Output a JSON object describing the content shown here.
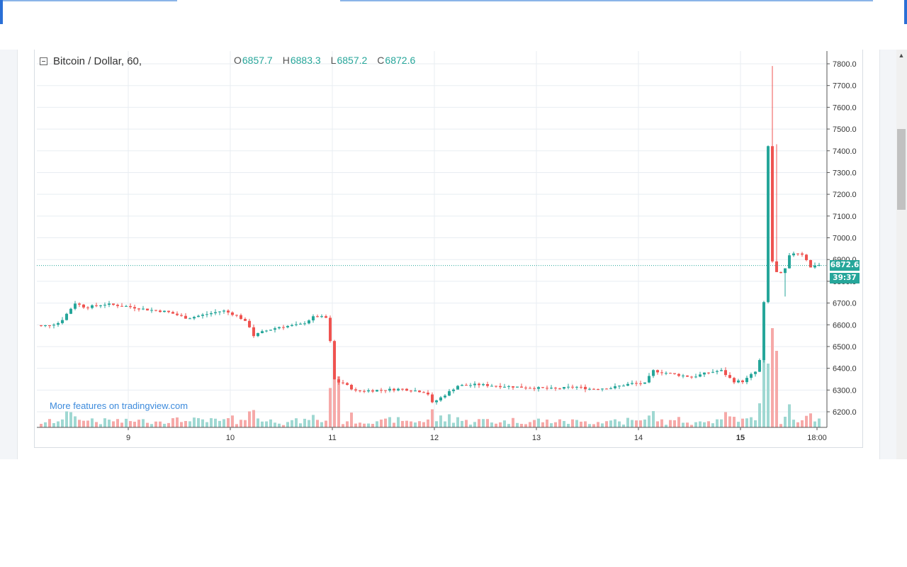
{
  "page": {
    "promo_link": "More features on tradingview.com"
  },
  "legend": {
    "symbol": "Bitcoin / Dollar, 60,",
    "o_label": "O",
    "o_value": "6857.7",
    "h_label": "H",
    "h_value": "6883.3",
    "l_label": "L",
    "l_value": "6857.2",
    "c_label": "C",
    "c_value": "6872.6"
  },
  "price_tag": {
    "price": "6872.6",
    "countdown": "39:37"
  },
  "colors": {
    "up": "#26a69a",
    "down": "#ef5350",
    "up_volume": "#9fd8d2",
    "down_volume": "#f6a9a8",
    "grid": "#e8edf2",
    "axis_text": "#333333"
  },
  "chart_data": {
    "type": "candlestick",
    "title": "",
    "xlabel": "",
    "ylabel": "",
    "ylim": [
      6140,
      7840
    ],
    "y_ticks": [
      "7800.0",
      "7700.0",
      "7600.0",
      "7500.0",
      "7400.0",
      "7300.0",
      "7200.0",
      "7100.0",
      "7000.0",
      "6900.0",
      "6800.0",
      "6700.0",
      "6600.0",
      "6500.0",
      "6400.0",
      "6300.0",
      "6200.0"
    ],
    "x_ticks": [
      "9",
      "10",
      "11",
      "12",
      "13",
      "14",
      "15",
      "18:00"
    ],
    "last_price": 6872.6,
    "grid": true,
    "anchors": [
      [
        8.0,
        6600
      ],
      [
        8.2,
        6595
      ],
      [
        8.35,
        6610
      ],
      [
        8.45,
        6670
      ],
      [
        8.5,
        6700
      ],
      [
        8.6,
        6680
      ],
      [
        8.8,
        6695
      ],
      [
        9.0,
        6685
      ],
      [
        9.2,
        6670
      ],
      [
        9.4,
        6660
      ],
      [
        9.6,
        6630
      ],
      [
        9.8,
        6650
      ],
      [
        9.95,
        6665
      ],
      [
        10.1,
        6640
      ],
      [
        10.2,
        6600
      ],
      [
        10.25,
        6550
      ],
      [
        10.35,
        6570
      ],
      [
        10.5,
        6590
      ],
      [
        10.7,
        6600
      ],
      [
        10.75,
        6610
      ],
      [
        10.85,
        6640
      ],
      [
        10.98,
        6630
      ],
      [
        11.03,
        6360
      ],
      [
        11.06,
        6330
      ],
      [
        11.1,
        6340
      ],
      [
        11.25,
        6295
      ],
      [
        11.5,
        6300
      ],
      [
        11.7,
        6305
      ],
      [
        11.95,
        6290
      ],
      [
        12.0,
        6240
      ],
      [
        12.1,
        6270
      ],
      [
        12.25,
        6320
      ],
      [
        12.45,
        6325
      ],
      [
        12.6,
        6320
      ],
      [
        12.8,
        6315
      ],
      [
        13.0,
        6310
      ],
      [
        13.2,
        6305
      ],
      [
        13.4,
        6315
      ],
      [
        13.55,
        6305
      ],
      [
        13.75,
        6310
      ],
      [
        13.95,
        6330
      ],
      [
        14.1,
        6330
      ],
      [
        14.15,
        6390
      ],
      [
        14.4,
        6370
      ],
      [
        14.55,
        6360
      ],
      [
        14.7,
        6380
      ],
      [
        14.83,
        6390
      ],
      [
        14.95,
        6340
      ],
      [
        15.05,
        6340
      ],
      [
        15.15,
        6380
      ],
      [
        15.2,
        6390
      ],
      [
        15.22,
        6500
      ],
      [
        15.25,
        6700
      ],
      [
        15.28,
        7420
      ],
      [
        15.3,
        7420
      ],
      [
        15.33,
        6900
      ],
      [
        15.35,
        6850
      ],
      [
        15.4,
        6830
      ],
      [
        15.45,
        6840
      ],
      [
        15.48,
        6900
      ],
      [
        15.52,
        6930
      ],
      [
        15.6,
        6930
      ],
      [
        15.65,
        6920
      ],
      [
        15.7,
        6860
      ],
      [
        15.75,
        6875
      ]
    ]
  }
}
